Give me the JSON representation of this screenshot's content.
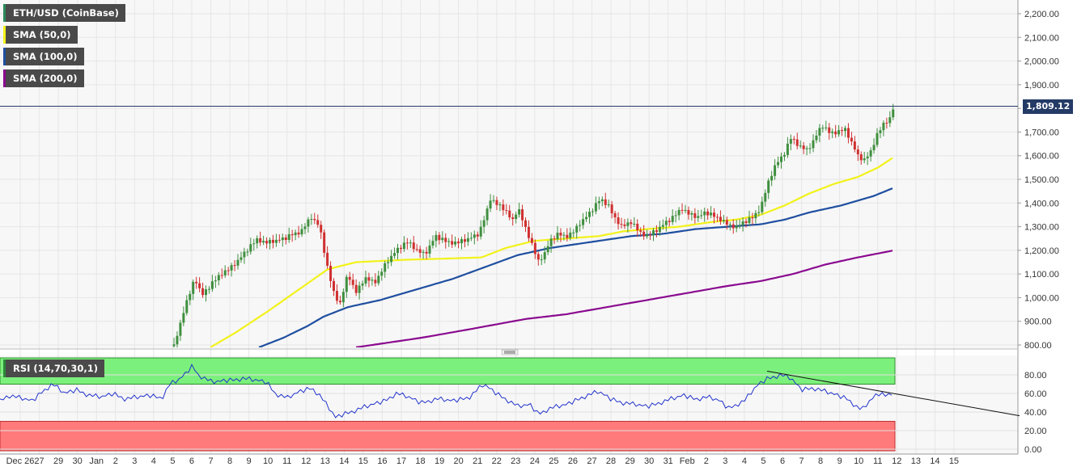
{
  "chart_data": [
    {
      "type": "candlestick",
      "instrument": "ETH/USD (CoinBase)",
      "indicators": [
        {
          "label": "SMA (50,0)",
          "color": "#f2f21a"
        },
        {
          "label": "SMA (100,0)",
          "color": "#1f4fa0"
        },
        {
          "label": "SMA (200,0)",
          "color": "#8a0a8f"
        }
      ],
      "last_price": "1,809.12",
      "ylim": [
        790,
        2240
      ],
      "y_ticks": [
        "2,200.00",
        "2,100.00",
        "2,000.00",
        "1,900.00",
        "1,800.00",
        "1,700.00",
        "1,600.00",
        "1,500.00",
        "1,400.00",
        "1,300.00",
        "1,200.00",
        "1,100.00",
        "1,000.00",
        "900.00",
        "800.00"
      ],
      "x_ticks": [
        "Dec 26",
        "27",
        "29",
        "30",
        "Jan",
        "2",
        "3",
        "4",
        "5",
        "6",
        "7",
        "8",
        "9",
        "10",
        "11",
        "12",
        "13",
        "14",
        "15",
        "16",
        "17",
        "18",
        "19",
        "20",
        "21",
        "22",
        "23",
        "24",
        "25",
        "26",
        "27",
        "28",
        "29",
        "30",
        "31",
        "Feb",
        "2",
        "3",
        "4",
        "5",
        "6",
        "7",
        "8",
        "9",
        "10",
        "11",
        "12",
        "13",
        "14",
        "15"
      ],
      "price_anchors": [
        [
          215,
          795
        ],
        [
          222,
          880
        ],
        [
          228,
          960
        ],
        [
          235,
          1020
        ],
        [
          241,
          1080
        ],
        [
          250,
          1010
        ],
        [
          262,
          1060
        ],
        [
          272,
          1100
        ],
        [
          284,
          1120
        ],
        [
          295,
          1160
        ],
        [
          305,
          1200
        ],
        [
          318,
          1250
        ],
        [
          328,
          1230
        ],
        [
          340,
          1240
        ],
        [
          352,
          1250
        ],
        [
          362,
          1270
        ],
        [
          372,
          1280
        ],
        [
          385,
          1340
        ],
        [
          395,
          1300
        ],
        [
          405,
          1120
        ],
        [
          412,
          1030
        ],
        [
          420,
          970
        ],
        [
          430,
          1100
        ],
        [
          440,
          1020
        ],
        [
          450,
          1080
        ],
        [
          465,
          1070
        ],
        [
          478,
          1150
        ],
        [
          490,
          1200
        ],
        [
          505,
          1240
        ],
        [
          515,
          1200
        ],
        [
          525,
          1180
        ],
        [
          538,
          1260
        ],
        [
          550,
          1240
        ],
        [
          565,
          1230
        ],
        [
          580,
          1250
        ],
        [
          592,
          1270
        ],
        [
          600,
          1350
        ],
        [
          606,
          1420
        ],
        [
          615,
          1390
        ],
        [
          625,
          1370
        ],
        [
          633,
          1320
        ],
        [
          640,
          1380
        ],
        [
          648,
          1310
        ],
        [
          657,
          1230
        ],
        [
          665,
          1150
        ],
        [
          672,
          1180
        ],
        [
          680,
          1240
        ],
        [
          690,
          1270
        ],
        [
          700,
          1260
        ],
        [
          710,
          1280
        ],
        [
          718,
          1320
        ],
        [
          727,
          1350
        ],
        [
          734,
          1380
        ],
        [
          742,
          1420
        ],
        [
          752,
          1390
        ],
        [
          760,
          1330
        ],
        [
          770,
          1300
        ],
        [
          780,
          1320
        ],
        [
          790,
          1280
        ],
        [
          800,
          1260
        ],
        [
          810,
          1280
        ],
        [
          820,
          1310
        ],
        [
          832,
          1340
        ],
        [
          842,
          1380
        ],
        [
          852,
          1350
        ],
        [
          862,
          1340
        ],
        [
          872,
          1360
        ],
        [
          880,
          1350
        ],
        [
          892,
          1330
        ],
        [
          902,
          1300
        ],
        [
          910,
          1300
        ],
        [
          920,
          1320
        ],
        [
          930,
          1340
        ],
        [
          940,
          1380
        ],
        [
          948,
          1470
        ],
        [
          958,
          1560
        ],
        [
          968,
          1600
        ],
        [
          978,
          1680
        ],
        [
          988,
          1640
        ],
        [
          998,
          1620
        ],
        [
          1008,
          1680
        ],
        [
          1016,
          1730
        ],
        [
          1024,
          1700
        ],
        [
          1034,
          1700
        ],
        [
          1044,
          1710
        ],
        [
          1052,
          1660
        ],
        [
          1060,
          1600
        ],
        [
          1068,
          1580
        ],
        [
          1076,
          1620
        ],
        [
          1084,
          1690
        ],
        [
          1092,
          1730
        ],
        [
          1100,
          1760
        ],
        [
          1105,
          1809
        ]
      ],
      "sma50_anchors": [
        [
          260,
          790
        ],
        [
          290,
          850
        ],
        [
          330,
          940
        ],
        [
          380,
          1060
        ],
        [
          405,
          1120
        ],
        [
          440,
          1150
        ],
        [
          500,
          1160
        ],
        [
          550,
          1165
        ],
        [
          595,
          1170
        ],
        [
          625,
          1210
        ],
        [
          660,
          1240
        ],
        [
          700,
          1250
        ],
        [
          740,
          1260
        ],
        [
          770,
          1280
        ],
        [
          800,
          1290
        ],
        [
          840,
          1300
        ],
        [
          880,
          1320
        ],
        [
          910,
          1330
        ],
        [
          940,
          1350
        ],
        [
          970,
          1390
        ],
        [
          1000,
          1440
        ],
        [
          1030,
          1480
        ],
        [
          1060,
          1510
        ],
        [
          1085,
          1550
        ],
        [
          1105,
          1595
        ]
      ],
      "sma100_anchors": [
        [
          320,
          790
        ],
        [
          350,
          830
        ],
        [
          380,
          880
        ],
        [
          400,
          920
        ],
        [
          430,
          960
        ],
        [
          470,
          990
        ],
        [
          510,
          1030
        ],
        [
          560,
          1080
        ],
        [
          600,
          1130
        ],
        [
          640,
          1180
        ],
        [
          680,
          1210
        ],
        [
          740,
          1240
        ],
        [
          780,
          1260
        ],
        [
          820,
          1270
        ],
        [
          860,
          1290
        ],
        [
          900,
          1300
        ],
        [
          940,
          1310
        ],
        [
          970,
          1330
        ],
        [
          1000,
          1360
        ],
        [
          1040,
          1390
        ],
        [
          1080,
          1430
        ],
        [
          1105,
          1465
        ]
      ],
      "sma200_anchors": [
        [
          440,
          790
        ],
        [
          480,
          810
        ],
        [
          520,
          830
        ],
        [
          570,
          860
        ],
        [
          610,
          885
        ],
        [
          650,
          910
        ],
        [
          700,
          930
        ],
        [
          750,
          960
        ],
        [
          800,
          990
        ],
        [
          850,
          1020
        ],
        [
          900,
          1050
        ],
        [
          940,
          1070
        ],
        [
          980,
          1100
        ],
        [
          1020,
          1140
        ],
        [
          1060,
          1170
        ],
        [
          1105,
          1200
        ]
      ]
    },
    {
      "type": "line",
      "label": "RSI (14,70,30,1)",
      "overbought": 70,
      "oversold": 30,
      "ylim": [
        0,
        100
      ],
      "y_ticks": [
        "80.00",
        "60.00",
        "40.00",
        "20.00",
        "0.00"
      ],
      "rsi_anchors": [
        [
          0,
          52
        ],
        [
          10,
          58
        ],
        [
          25,
          55
        ],
        [
          40,
          52
        ],
        [
          52,
          62
        ],
        [
          65,
          70
        ],
        [
          80,
          60
        ],
        [
          95,
          64
        ],
        [
          110,
          58
        ],
        [
          125,
          56
        ],
        [
          140,
          60
        ],
        [
          155,
          54
        ],
        [
          170,
          56
        ],
        [
          185,
          58
        ],
        [
          200,
          55
        ],
        [
          210,
          70
        ],
        [
          220,
          74
        ],
        [
          228,
          80
        ],
        [
          238,
          90
        ],
        [
          245,
          80
        ],
        [
          262,
          72
        ],
        [
          280,
          74
        ],
        [
          300,
          76
        ],
        [
          318,
          74
        ],
        [
          330,
          72
        ],
        [
          340,
          60
        ],
        [
          355,
          55
        ],
        [
          370,
          62
        ],
        [
          385,
          66
        ],
        [
          395,
          58
        ],
        [
          405,
          46
        ],
        [
          415,
          34
        ],
        [
          425,
          38
        ],
        [
          440,
          42
        ],
        [
          460,
          48
        ],
        [
          475,
          52
        ],
        [
          490,
          60
        ],
        [
          505,
          56
        ],
        [
          520,
          50
        ],
        [
          540,
          54
        ],
        [
          560,
          52
        ],
        [
          580,
          56
        ],
        [
          598,
          70
        ],
        [
          610,
          62
        ],
        [
          625,
          54
        ],
        [
          640,
          46
        ],
        [
          655,
          48
        ],
        [
          665,
          38
        ],
        [
          680,
          44
        ],
        [
          700,
          48
        ],
        [
          720,
          56
        ],
        [
          740,
          62
        ],
        [
          755,
          54
        ],
        [
          770,
          50
        ],
        [
          785,
          48
        ],
        [
          800,
          46
        ],
        [
          815,
          50
        ],
        [
          830,
          54
        ],
        [
          845,
          58
        ],
        [
          860,
          54
        ],
        [
          875,
          56
        ],
        [
          890,
          52
        ],
        [
          900,
          44
        ],
        [
          910,
          48
        ],
        [
          920,
          52
        ],
        [
          935,
          68
        ],
        [
          948,
          76
        ],
        [
          965,
          80
        ],
        [
          978,
          76
        ],
        [
          990,
          64
        ],
        [
          1005,
          66
        ],
        [
          1020,
          62
        ],
        [
          1035,
          58
        ],
        [
          1048,
          54
        ],
        [
          1058,
          46
        ],
        [
          1065,
          42
        ],
        [
          1075,
          52
        ],
        [
          1085,
          60
        ],
        [
          1095,
          58
        ],
        [
          1105,
          62
        ]
      ],
      "trendline": {
        "from": [
          948,
          84
        ],
        "to": [
          1260,
          36
        ]
      }
    }
  ],
  "colors": {
    "up": "#3f8f3f",
    "down": "#d03030",
    "overbought_fill": "#7cf07c",
    "oversold_fill": "#ff7a7a",
    "rsi_line": "#2233cc",
    "price_line": "#243b66"
  }
}
